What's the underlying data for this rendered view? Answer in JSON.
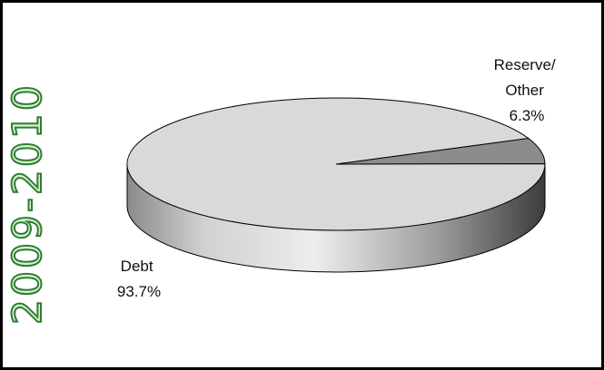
{
  "year_label": "2009-2010",
  "chart_data": {
    "type": "pie",
    "title": "2009-2010",
    "slices": [
      {
        "name": "Debt",
        "value": 93.7,
        "value_label": "93.7%",
        "color": "#d9d9d9"
      },
      {
        "name": "Reserve/\nOther",
        "name_lines": [
          "Reserve/",
          "Other"
        ],
        "value": 6.3,
        "value_label": "6.3%",
        "color": "#8c8c8c"
      }
    ],
    "three_d": true,
    "legend": "none"
  }
}
